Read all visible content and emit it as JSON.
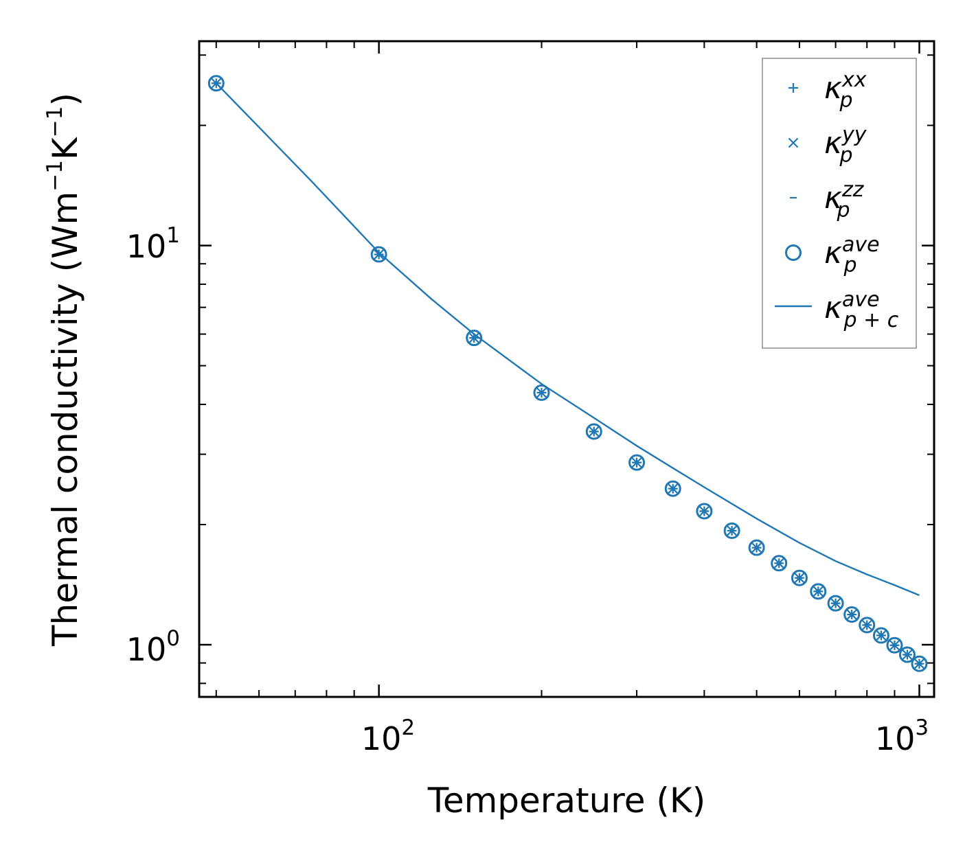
{
  "chart_data": {
    "type": "scatter",
    "title": "",
    "xlabel": "Temperature (K)",
    "ylabel_parts": [
      "Thermal conductivity (Wm",
      "−1",
      "K",
      "−1",
      ")"
    ],
    "xscale": "log",
    "yscale": "log",
    "xlim": [
      46.5,
      1065
    ],
    "ylim": [
      0.74,
      32.5
    ],
    "x_ticks": [
      {
        "value": 100,
        "base": "10",
        "exp": "2"
      },
      {
        "value": 1000,
        "base": "10",
        "exp": "3"
      }
    ],
    "y_ticks": [
      {
        "value": 1,
        "base": "10",
        "exp": "0"
      },
      {
        "value": 10,
        "base": "10",
        "exp": "1"
      }
    ],
    "grid": false,
    "legend_position": "top-right",
    "color": "#1f77b4",
    "series": [
      {
        "name": "kappa_p_xx",
        "label": "κ",
        "sub": "p",
        "sup": "xx",
        "marker": "plus",
        "x": [
          50,
          100,
          150,
          200,
          250,
          300,
          350,
          400,
          450,
          500,
          550,
          600,
          650,
          700,
          750,
          800,
          850,
          900,
          950,
          1000
        ],
        "y": [
          25.5,
          9.5,
          5.87,
          4.28,
          3.42,
          2.86,
          2.46,
          2.16,
          1.93,
          1.75,
          1.6,
          1.47,
          1.36,
          1.27,
          1.19,
          1.12,
          1.055,
          0.997,
          0.944,
          0.896
        ]
      },
      {
        "name": "kappa_p_yy",
        "label": "κ",
        "sub": "p",
        "sup": "yy",
        "marker": "x",
        "x": [
          50,
          100,
          150,
          200,
          250,
          300,
          350,
          400,
          450,
          500,
          550,
          600,
          650,
          700,
          750,
          800,
          850,
          900,
          950,
          1000
        ],
        "y": [
          25.5,
          9.5,
          5.87,
          4.28,
          3.42,
          2.86,
          2.46,
          2.16,
          1.93,
          1.75,
          1.6,
          1.47,
          1.36,
          1.27,
          1.19,
          1.12,
          1.055,
          0.997,
          0.944,
          0.896
        ]
      },
      {
        "name": "kappa_p_zz",
        "label": "κ",
        "sub": "p",
        "sup": "zz",
        "marker": "hline",
        "x": [
          50,
          100,
          150,
          200,
          250,
          300,
          350,
          400,
          450,
          500,
          550,
          600,
          650,
          700,
          750,
          800,
          850,
          900,
          950,
          1000
        ],
        "y": [
          25.5,
          9.5,
          5.87,
          4.28,
          3.42,
          2.86,
          2.46,
          2.16,
          1.93,
          1.75,
          1.6,
          1.47,
          1.36,
          1.27,
          1.19,
          1.12,
          1.055,
          0.997,
          0.944,
          0.896
        ]
      },
      {
        "name": "kappa_p_ave",
        "label": "κ",
        "sub": "p",
        "sup": "ave",
        "marker": "circle",
        "x": [
          50,
          100,
          150,
          200,
          250,
          300,
          350,
          400,
          450,
          500,
          550,
          600,
          650,
          700,
          750,
          800,
          850,
          900,
          950,
          1000
        ],
        "y": [
          25.5,
          9.5,
          5.87,
          4.28,
          3.42,
          2.86,
          2.46,
          2.16,
          1.93,
          1.75,
          1.6,
          1.47,
          1.36,
          1.27,
          1.19,
          1.12,
          1.055,
          0.997,
          0.944,
          0.896
        ]
      },
      {
        "name": "kappa_pc_ave",
        "label": "κ",
        "sub": "p + c",
        "sup": "ave",
        "marker": "line",
        "x": [
          50,
          75,
          100,
          125,
          150,
          200,
          250,
          300,
          350,
          400,
          500,
          600,
          700,
          800,
          900,
          1000
        ],
        "y": [
          25.5,
          14.5,
          9.6,
          7.35,
          6.0,
          4.5,
          3.7,
          3.15,
          2.77,
          2.48,
          2.07,
          1.8,
          1.62,
          1.5,
          1.41,
          1.33
        ]
      }
    ]
  }
}
